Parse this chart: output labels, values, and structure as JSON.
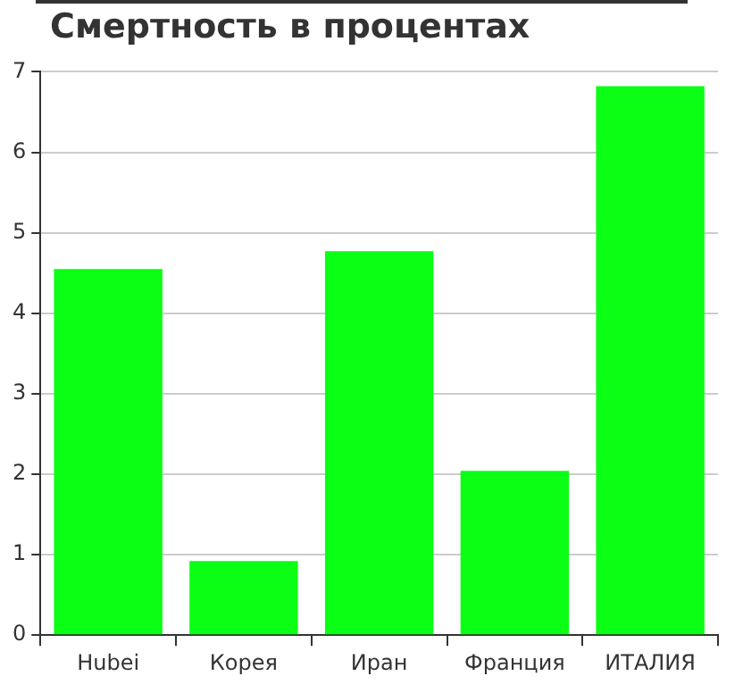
{
  "chart_data": {
    "type": "bar",
    "title": "Смертность в процентах",
    "categories": [
      "Hubei",
      "Корея",
      "Иран",
      "Франция",
      "ИТАЛИЯ"
    ],
    "values": [
      4.55,
      0.92,
      4.77,
      2.04,
      6.82
    ],
    "color": "#0aff14",
    "ylim": [
      0,
      7
    ],
    "yticks": [
      0,
      1,
      2,
      3,
      4,
      5,
      6,
      7
    ],
    "grid": "y"
  }
}
